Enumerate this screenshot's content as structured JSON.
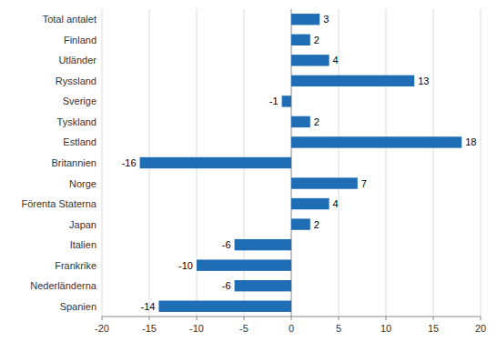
{
  "chart_data": {
    "type": "bar",
    "orientation": "horizontal",
    "categories": [
      "Spanien",
      "Nederländerna",
      "Frankrike",
      "Italien",
      "Japan",
      "Förenta Staterna",
      "Norge",
      "Britannien",
      "Estland",
      "Tyskland",
      "Sverige",
      "Ryssland",
      "Utländer",
      "Finland",
      "Total antalet"
    ],
    "values": [
      -14,
      -6,
      -10,
      -6,
      2,
      4,
      7,
      -16,
      18,
      2,
      -1,
      13,
      4,
      2,
      3
    ],
    "color": "#1f6eb5",
    "xlim": [
      -20,
      20
    ],
    "xticks": [
      -20,
      -15,
      -10,
      -5,
      0,
      5,
      10,
      15,
      20
    ],
    "grid": true,
    "data_labels": true
  }
}
